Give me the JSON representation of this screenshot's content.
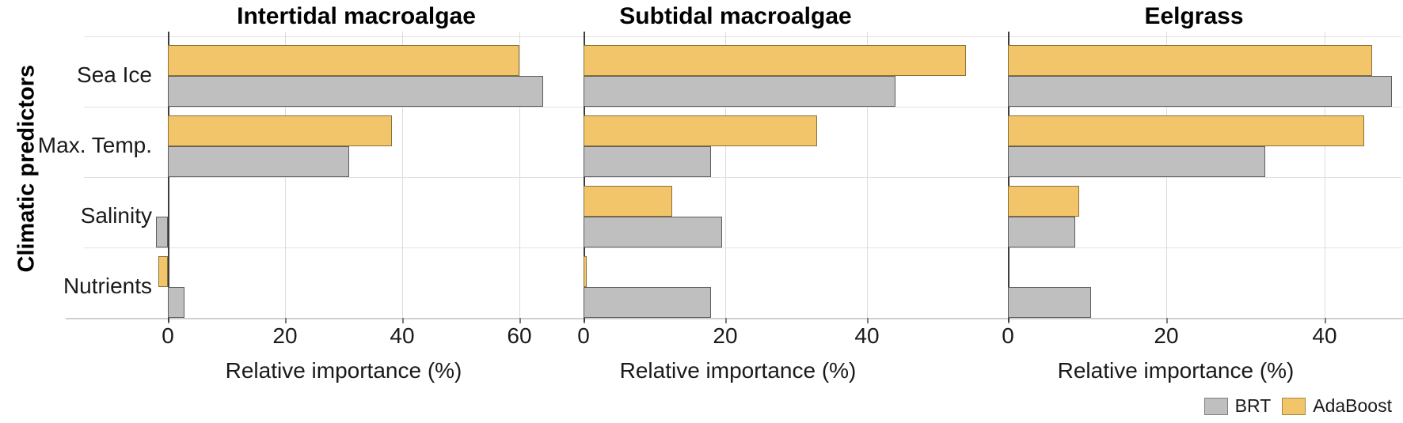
{
  "figure": {
    "ylabel": "Climatic predictors",
    "categories": [
      "Sea Ice",
      "Max. Temp.",
      "Salinity",
      "Nutrients"
    ],
    "colors": {
      "brt_fill": "#bfbfbf",
      "adaboost_fill": "#f2c56a"
    },
    "legend": [
      {
        "label": "BRT",
        "color": "#bfbfbf"
      },
      {
        "label": "AdaBoost",
        "color": "#f2c56a"
      }
    ]
  },
  "chart_data": {
    "type": "bar",
    "orientation": "horizontal",
    "grid": true,
    "legend_position": "bottom-right",
    "ylabel": "Climatic predictors",
    "categories": [
      "Sea Ice",
      "Max. Temp.",
      "Salinity",
      "Nutrients"
    ],
    "panels": [
      {
        "title": "Intertidal macroalgae",
        "xlabel": "Relative importance (%)",
        "ticks": [
          0,
          20,
          40,
          60
        ],
        "xlim": [
          -14,
          67
        ],
        "series": [
          {
            "name": "AdaBoost",
            "values": [
              60,
              38.3,
              0,
              -1.6
            ]
          },
          {
            "name": "BRT",
            "values": [
              64,
              31,
              -2,
              2.8
            ]
          }
        ]
      },
      {
        "title": "Subtidal macroalgae",
        "xlabel": "Relative importance (%)",
        "ticks": [
          0,
          20,
          40
        ],
        "xlim": [
          -3,
          57
        ],
        "series": [
          {
            "name": "AdaBoost",
            "values": [
              54,
              33,
              12.5,
              0.4
            ]
          },
          {
            "name": "BRT",
            "values": [
              44,
              18,
              19.5,
              18
            ]
          }
        ]
      },
      {
        "title": "Eelgrass",
        "xlabel": "Relative importance (%)",
        "ticks": [
          0,
          20,
          40
        ],
        "xlim": [
          -2,
          49.7
        ],
        "series": [
          {
            "name": "AdaBoost",
            "values": [
              46,
              45,
              9,
              0
            ]
          },
          {
            "name": "BRT",
            "values": [
              48.5,
              32.5,
              8.5,
              10.5
            ]
          }
        ]
      }
    ]
  }
}
